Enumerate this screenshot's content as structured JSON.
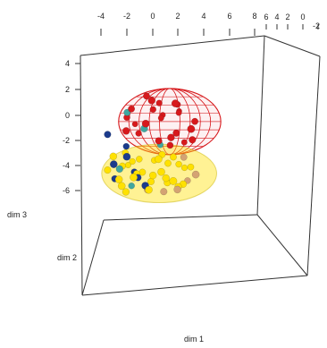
{
  "chart_data": {
    "type": "scatter",
    "title": "",
    "xlabel": "dim 1",
    "ylabel": "dim 2",
    "zlabel": "dim 3",
    "x_ticks": [
      "-4",
      "-2",
      "0",
      "2",
      "4",
      "6",
      "8"
    ],
    "y_ticks": [
      "6",
      "4",
      "2",
      "0",
      "-2"
    ],
    "z_ticks": [
      "4",
      "2",
      "0",
      "-2",
      "-4",
      "-6"
    ],
    "x_range": [
      -4,
      8
    ],
    "y_range": [
      -2,
      6
    ],
    "z_range": [
      -6,
      4
    ],
    "grid": false,
    "legend": "none",
    "series": [
      {
        "color": "#d7191c",
        "ellipsoid": {
          "style": "wireframe",
          "center": [
            1.5,
            1,
            -0.5
          ],
          "radii": [
            4.0,
            1.6,
            2.6
          ]
        },
        "x": [
          -1.5,
          0.0,
          1.0,
          2.2,
          3.0,
          2.5,
          -0.8,
          0.6,
          1.8,
          3.5,
          -2.0,
          -1.0,
          0.3,
          1.5,
          2.8,
          -0.3,
          1.2,
          2.0,
          -1.8,
          0.8,
          3.2,
          -0.5,
          1.6,
          2.4
        ],
        "y": [
          1.0,
          0.5,
          2.0,
          1.5,
          0.0,
          2.5,
          1.8,
          0.8,
          0.2,
          1.2,
          0.5,
          2.2,
          1.6,
          0.4,
          1.9,
          1.1,
          2.4,
          0.9,
          1.3,
          1.7,
          0.6,
          0.3,
          1.4,
          2.1
        ],
        "z": [
          0.5,
          1.2,
          -0.3,
          0.8,
          -1.0,
          0.2,
          -1.5,
          -2.0,
          1.0,
          -0.5,
          -1.2,
          -0.8,
          0.4,
          -1.7,
          -2.2,
          1.5,
          -0.1,
          -1.4,
          -0.2,
          0.9,
          -1.9,
          -0.6,
          -2.4,
          0.1
        ]
      },
      {
        "color": "#ffe100",
        "ellipsoid": {
          "style": "solid",
          "center": [
            0.5,
            0,
            -4.5
          ],
          "radii": [
            4.5,
            1.8,
            2.3
          ]
        },
        "x": [
          -3.0,
          -2.2,
          -1.5,
          -0.8,
          0.0,
          0.7,
          1.4,
          2.1,
          2.8,
          -2.6,
          -1.9,
          -1.1,
          -0.3,
          0.4,
          1.1,
          1.8,
          2.5,
          3.2,
          -3.4,
          -2.4,
          -1.3,
          0.1,
          0.9,
          1.6,
          2.3,
          -2.0,
          -0.6,
          0.5,
          1.3,
          -1.6
        ],
        "y": [
          0.5,
          1.0,
          0.0,
          1.5,
          0.8,
          0.2,
          1.2,
          0.6,
          1.8,
          0.3,
          1.4,
          0.9,
          0.1,
          1.6,
          0.4,
          1.1,
          0.7,
          1.3,
          0.8,
          0.2,
          1.7,
          0.5,
          1.0,
          0.0,
          1.5,
          0.6,
          1.2,
          0.3,
          0.9,
          1.9
        ],
        "z": [
          -3.2,
          -4.0,
          -4.8,
          -3.5,
          -5.2,
          -4.4,
          -3.8,
          -5.6,
          -4.2,
          -5.0,
          -3.0,
          -4.6,
          -5.8,
          -3.6,
          -4.9,
          -3.3,
          -5.4,
          -4.1,
          -4.3,
          -5.5,
          -3.7,
          -4.7,
          -3.1,
          -5.1,
          -3.9,
          -6.0,
          -4.5,
          -3.4,
          -5.3,
          -4.0
        ]
      },
      {
        "color": "#1b3b8c",
        "x": [
          -3.4,
          -2.0,
          -1.2,
          -2.8,
          -0.5,
          -1.8,
          -3.0,
          -1.0
        ],
        "y": [
          0.8,
          0.2,
          1.4,
          1.0,
          0.5,
          1.6,
          0.3,
          0.9
        ],
        "z": [
          -1.5,
          -3.2,
          -4.5,
          -5.0,
          -5.5,
          -2.5,
          -3.8,
          -4.9
        ]
      },
      {
        "color": "#3fa7a0",
        "x": [
          -1.8,
          -0.6,
          0.9,
          -2.5,
          -1.4
        ],
        "y": [
          1.2,
          0.4,
          1.8,
          0.6,
          1.5
        ],
        "z": [
          0.2,
          -1.0,
          -2.4,
          -4.2,
          -5.6
        ]
      },
      {
        "color": "#d4a373",
        "x": [
          2.0,
          3.0,
          1.0,
          3.4,
          -0.2,
          2.6
        ],
        "y": [
          0.4,
          1.6,
          0.8,
          0.2,
          1.2,
          1.0
        ],
        "z": [
          -5.8,
          -5.2,
          -6.0,
          -4.6,
          -5.9,
          -3.3
        ]
      }
    ]
  }
}
